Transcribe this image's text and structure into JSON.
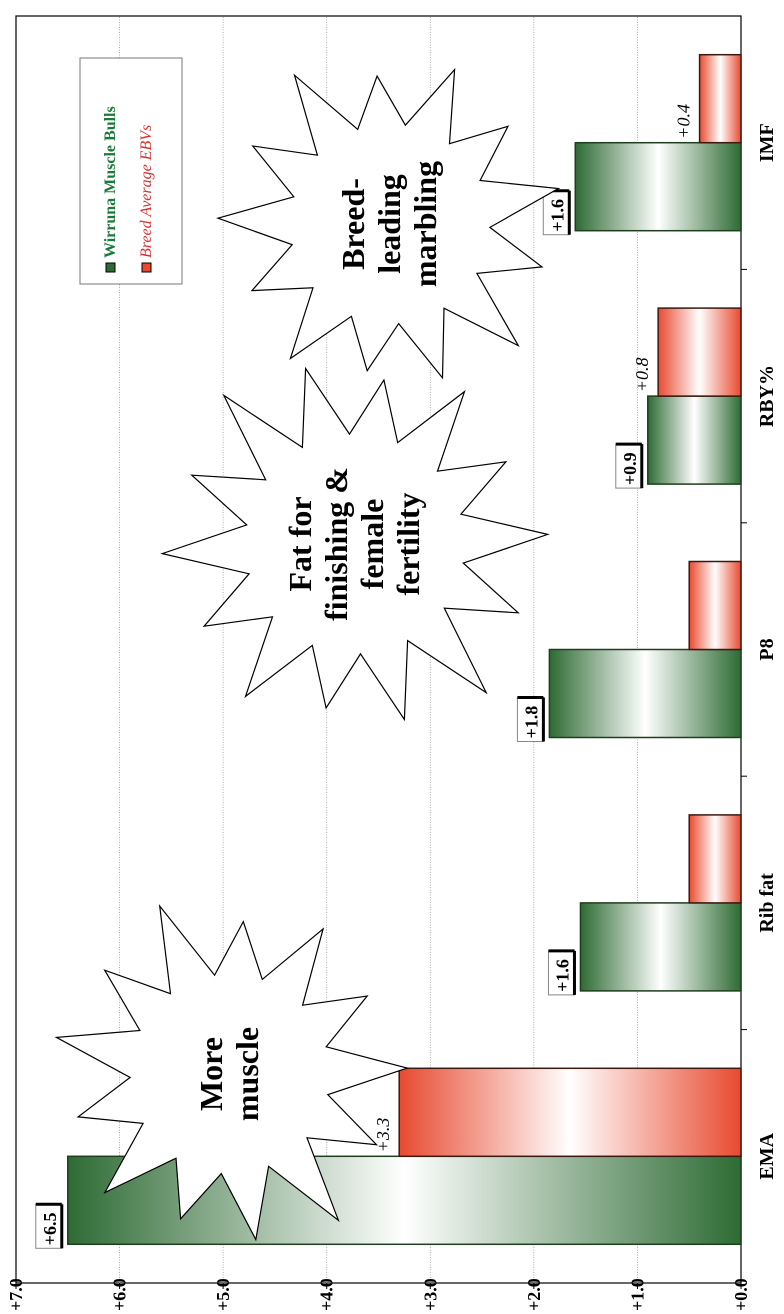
{
  "chart_data": {
    "type": "bar",
    "orientation": "horizontal (rotated page)",
    "categories": [
      "EMA",
      "Rib fat",
      "P8",
      "RBY%",
      "IMF"
    ],
    "series": [
      {
        "name": "Wirruna Muscle Bulls",
        "values": [
          6.5,
          1.55,
          1.85,
          0.9,
          1.6
        ],
        "labels": [
          "+6.5",
          "+1.6",
          "+1.8",
          "+0.9",
          "+1.6"
        ]
      },
      {
        "name": "Breed Average EBVs",
        "values": [
          3.3,
          0.5,
          0.5,
          0.8,
          0.4
        ],
        "labels": [
          "+3.3",
          "",
          "",
          "+0.8",
          "+0.4"
        ]
      }
    ],
    "tick_labels": [
      "+0.0",
      "+1.0",
      "+2.0",
      "+3.0",
      "+4.0",
      "+5.0",
      "+6.0",
      "+7.0"
    ],
    "xlim": [
      0,
      7
    ],
    "grid": true,
    "legend_position": "top-right",
    "colors": {
      "series1": "#2e7d3a",
      "series2": "#e8503a",
      "legend1_text": "#1a7a3a",
      "legend2_text": "#d83030"
    },
    "annotations": [
      {
        "text": [
          "More",
          "muscle"
        ],
        "near": "EMA"
      },
      {
        "text": [
          "Fat for",
          "finishing &",
          "female",
          "fertility"
        ],
        "near": "P8"
      },
      {
        "text": [
          "Breed-",
          "leading",
          "marbling"
        ],
        "near": "IMF"
      }
    ]
  }
}
